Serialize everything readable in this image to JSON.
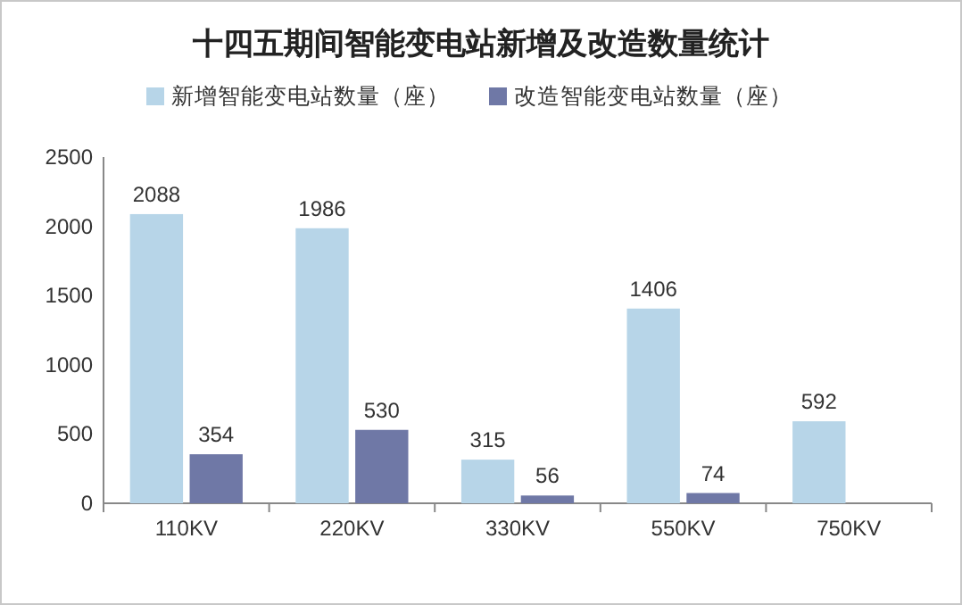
{
  "chart_data": {
    "type": "bar",
    "title": "十四五期间智能变电站新增及改造数量统计",
    "categories": [
      "110KV",
      "220KV",
      "330KV",
      "550KV",
      "750KV"
    ],
    "series": [
      {
        "name": "新增智能变电站数量（座）",
        "color": "#b7d5e8",
        "values": [
          2088,
          1986,
          315,
          1406,
          592
        ]
      },
      {
        "name": "改造智能变电站数量（座）",
        "color": "#6f78a6",
        "values": [
          354,
          530,
          56,
          74,
          null
        ]
      }
    ],
    "ylim": [
      0,
      2500
    ],
    "yticks": [
      0,
      500,
      1000,
      1500,
      2000,
      2500
    ],
    "grid": false,
    "legend": "top",
    "data_labels": true
  }
}
